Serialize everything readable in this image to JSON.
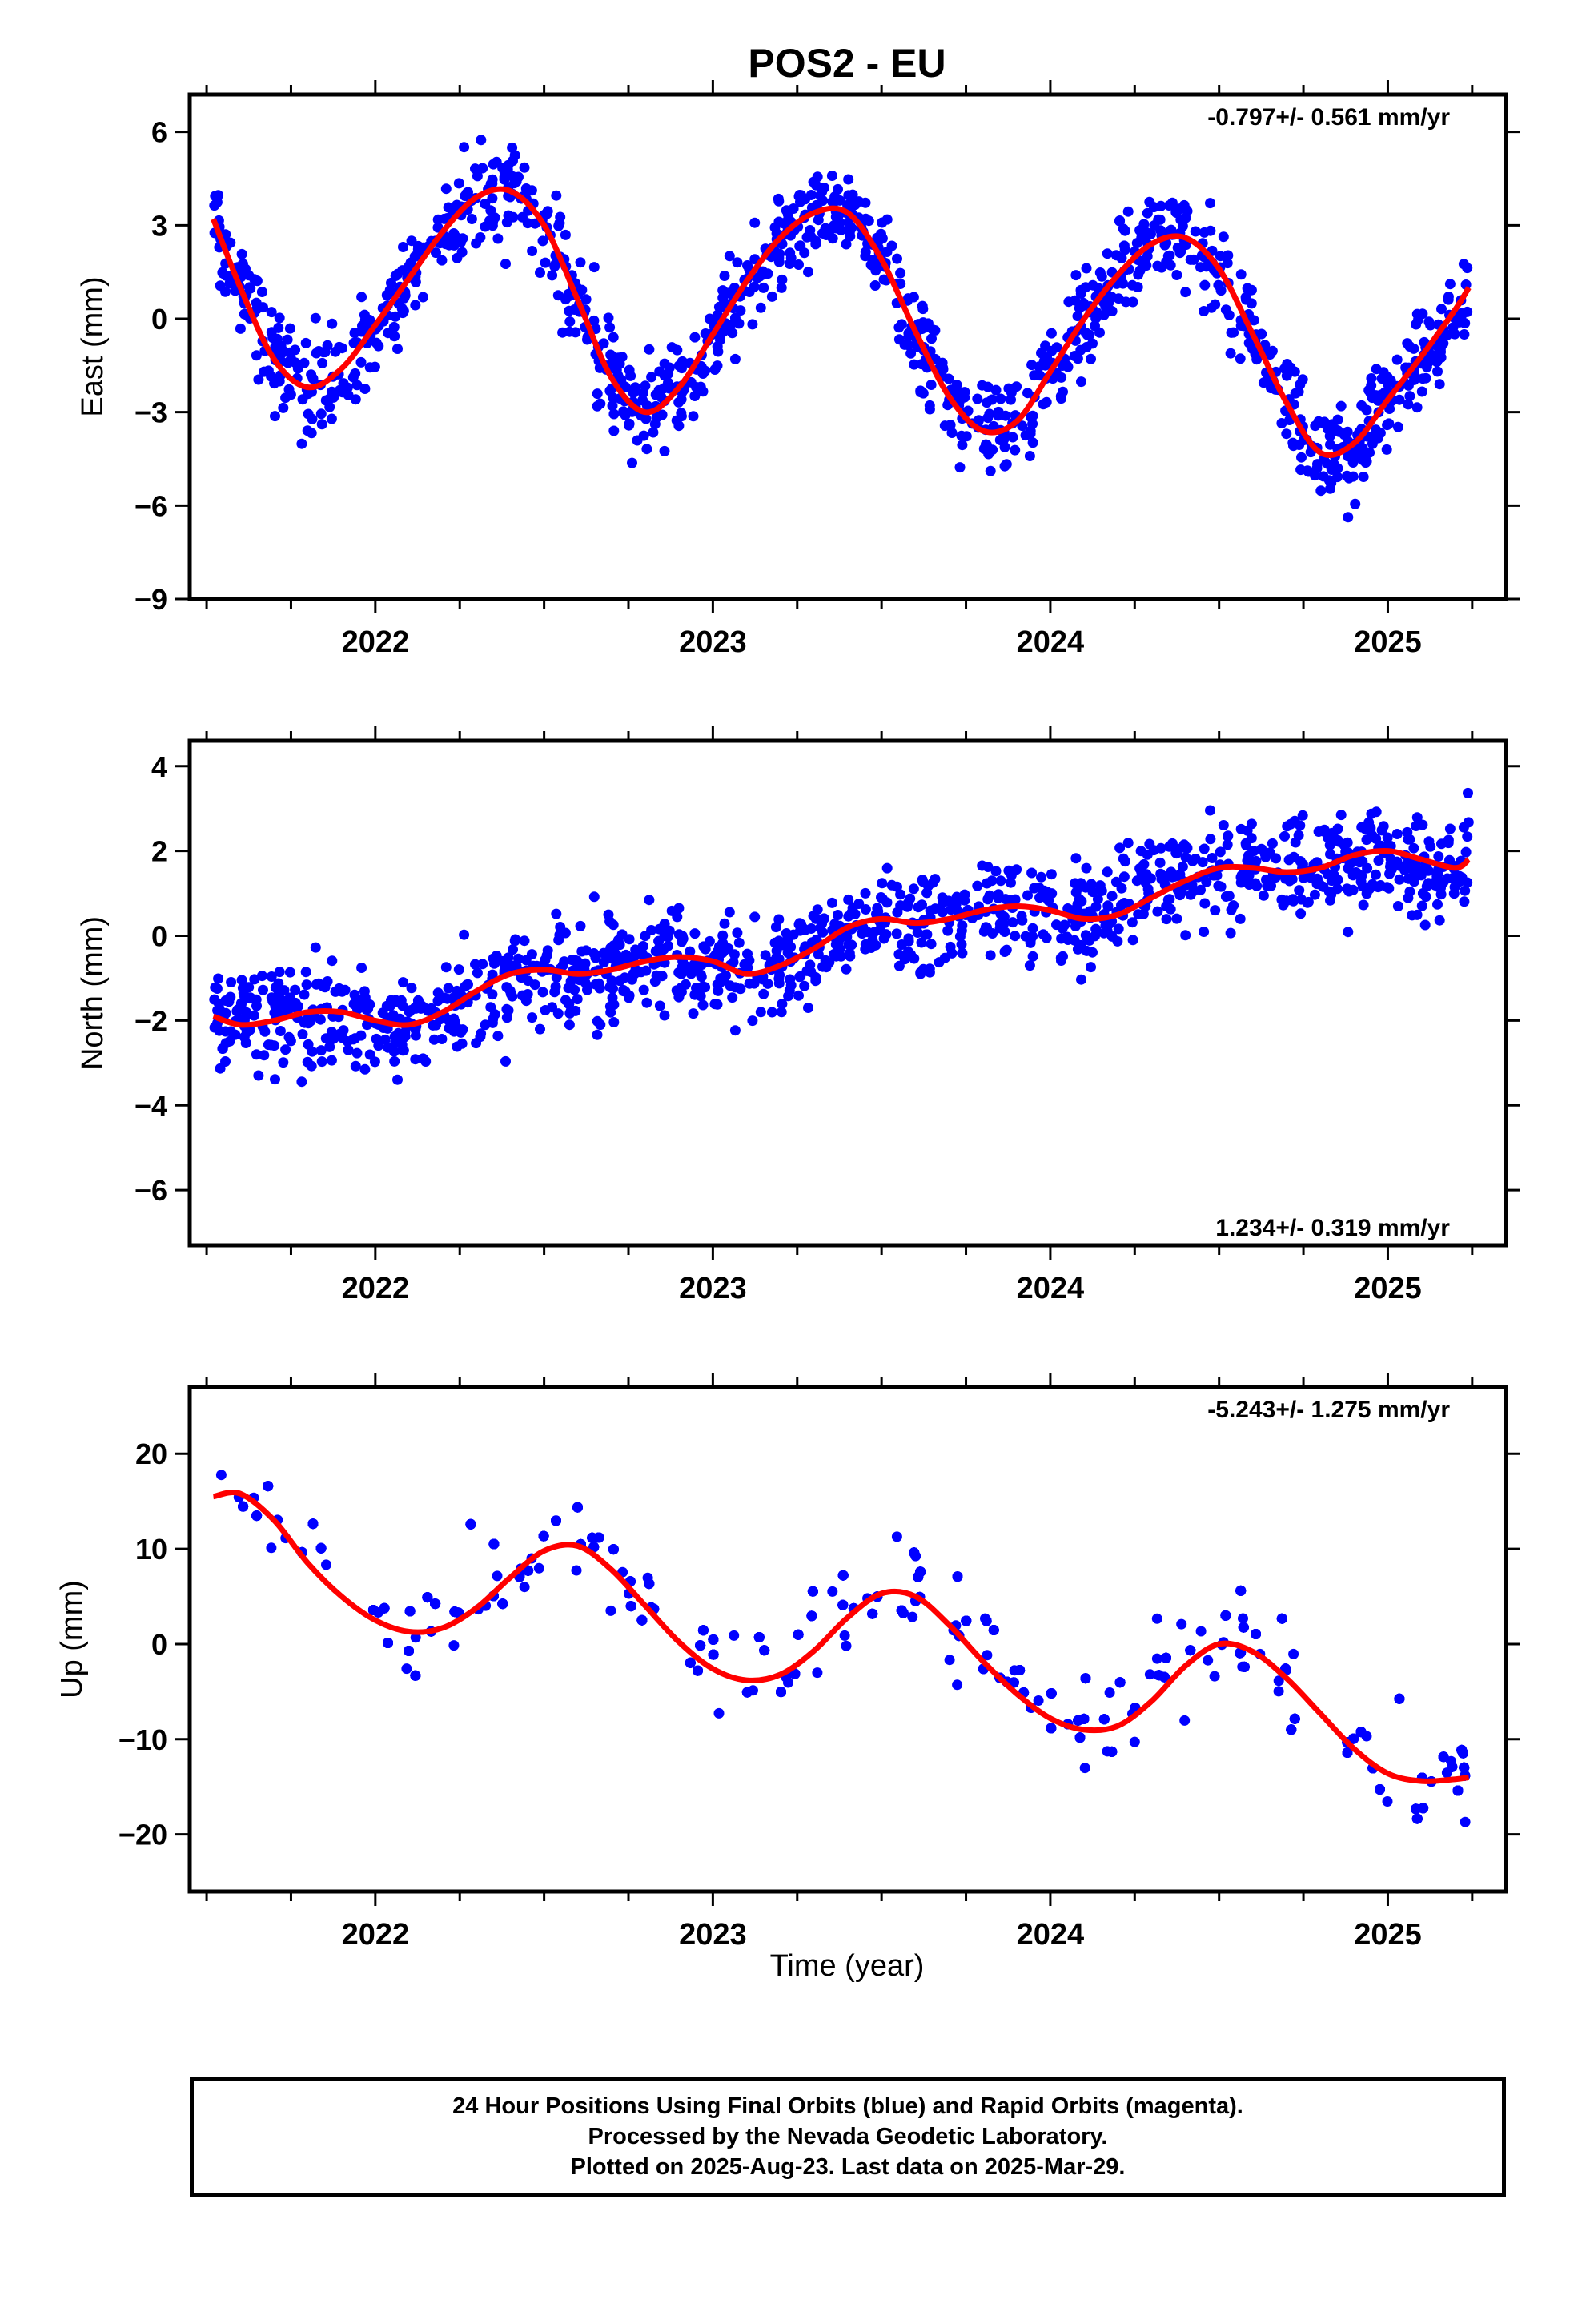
{
  "title": "POS2 - EU",
  "xlabel": "Time (year)",
  "footer": {
    "line1": "24 Hour Positions Using Final Orbits (blue) and Rapid Orbits (magenta).",
    "line2": "Processed by the Nevada Geodetic Laboratory.",
    "line3": "Plotted on 2025-Aug-23. Last data on 2025-Mar-29."
  },
  "colors": {
    "points": "#0000ff",
    "fit": "#ff0000",
    "axes": "#000000"
  },
  "chart_data": [
    {
      "type": "scatter",
      "ylabel": "East (mm)",
      "rate_label": "-0.797+/- 0.561 mm/yr",
      "rate_position": "top-right",
      "xlim": [
        2021.45,
        2025.35
      ],
      "ylim": [
        -9,
        7.2
      ],
      "yticks": [
        -9,
        -6,
        -3,
        0,
        3,
        6
      ],
      "xticks": [
        2022,
        2023,
        2024,
        2025
      ],
      "series": [
        {
          "kind": "points",
          "color": "#0000ff",
          "x": [
            2021.52,
            2021.6,
            2021.7,
            2021.8,
            2021.9,
            2022.0,
            2022.1,
            2022.2,
            2022.3,
            2022.4,
            2022.5,
            2022.6,
            2022.7,
            2022.8,
            2022.9,
            2023.0,
            2023.1,
            2023.2,
            2023.3,
            2023.4,
            2023.5,
            2023.6,
            2023.7,
            2023.8,
            2023.9,
            2024.0,
            2024.1,
            2024.2,
            2024.3,
            2024.4,
            2024.5,
            2024.6,
            2024.7,
            2024.8,
            2024.9,
            2025.0,
            2025.1,
            2025.2,
            2025.24
          ],
          "y": [
            3.2,
            1.0,
            -1.3,
            -2.2,
            -1.6,
            -0.2,
            1.3,
            2.8,
            3.9,
            4.1,
            3.0,
            0.6,
            -1.9,
            -3.0,
            -2.2,
            -0.5,
            1.2,
            2.6,
            3.4,
            3.4,
            1.9,
            -0.4,
            -2.5,
            -3.6,
            -3.3,
            -1.7,
            0.0,
            1.4,
            2.4,
            2.6,
            1.6,
            -0.5,
            -2.7,
            -4.3,
            -4.0,
            -2.6,
            -1.2,
            0.3,
            1.0
          ],
          "scatter_mm": 1.3
        },
        {
          "kind": "fit",
          "name": "",
          "color": "#ff0000",
          "x": [
            2021.52,
            2021.6,
            2021.7,
            2021.8,
            2021.9,
            2022.0,
            2022.1,
            2022.2,
            2022.3,
            2022.4,
            2022.5,
            2022.6,
            2022.7,
            2022.8,
            2022.9,
            2023.0,
            2023.1,
            2023.2,
            2023.3,
            2023.4,
            2023.5,
            2023.6,
            2023.7,
            2023.8,
            2023.9,
            2024.0,
            2024.1,
            2024.2,
            2024.3,
            2024.4,
            2024.5,
            2024.6,
            2024.7,
            2024.8,
            2024.9,
            2025.0,
            2025.1,
            2025.2,
            2025.24
          ],
          "y": [
            3.2,
            1.0,
            -1.3,
            -2.2,
            -1.6,
            -0.2,
            1.3,
            2.8,
            3.9,
            4.1,
            3.0,
            0.6,
            -1.9,
            -3.0,
            -2.2,
            -0.5,
            1.2,
            2.6,
            3.4,
            3.4,
            1.9,
            -0.4,
            -2.5,
            -3.6,
            -3.3,
            -1.7,
            0.0,
            1.4,
            2.4,
            2.6,
            1.6,
            -0.5,
            -2.7,
            -4.3,
            -4.0,
            -2.6,
            -1.2,
            0.3,
            1.0
          ]
        }
      ]
    },
    {
      "type": "scatter",
      "ylabel": "North (mm)",
      "rate_label": "1.234+/- 0.319 mm/yr",
      "rate_position": "bottom-right",
      "xlim": [
        2021.45,
        2025.35
      ],
      "ylim": [
        -7.3,
        4.6
      ],
      "yticks": [
        -6,
        -4,
        -2,
        0,
        2,
        4
      ],
      "xticks": [
        2022,
        2023,
        2024,
        2025
      ],
      "series": [
        {
          "kind": "points",
          "color": "#0000ff",
          "x": [
            2021.52,
            2021.7,
            2021.9,
            2022.1,
            2022.3,
            2022.5,
            2022.7,
            2022.9,
            2023.1,
            2023.3,
            2023.5,
            2023.7,
            2023.9,
            2024.1,
            2024.3,
            2024.5,
            2024.7,
            2024.9,
            2025.1,
            2025.24
          ],
          "y": [
            -1.9,
            -2.0,
            -1.8,
            -2.1,
            -1.4,
            -0.9,
            -0.8,
            -0.5,
            -0.8,
            -0.3,
            0.3,
            0.4,
            0.7,
            0.4,
            1.1,
            1.6,
            1.6,
            1.9,
            1.6,
            1.8
          ],
          "scatter_mm": 1.0
        },
        {
          "kind": "fit",
          "name": "",
          "color": "#ff0000",
          "x": [
            2021.52,
            2021.6,
            2021.7,
            2021.8,
            2021.9,
            2022.0,
            2022.1,
            2022.2,
            2022.3,
            2022.4,
            2022.5,
            2022.6,
            2022.7,
            2022.8,
            2022.9,
            2023.0,
            2023.1,
            2023.2,
            2023.3,
            2023.4,
            2023.5,
            2023.6,
            2023.7,
            2023.8,
            2023.9,
            2024.0,
            2024.1,
            2024.2,
            2024.3,
            2024.4,
            2024.5,
            2024.6,
            2024.7,
            2024.8,
            2024.9,
            2025.0,
            2025.1,
            2025.2,
            2025.24
          ],
          "y": [
            -1.9,
            -2.1,
            -2.0,
            -1.8,
            -1.8,
            -2.0,
            -2.1,
            -1.8,
            -1.3,
            -0.9,
            -0.8,
            -0.9,
            -0.8,
            -0.6,
            -0.5,
            -0.6,
            -0.9,
            -0.7,
            -0.3,
            0.2,
            0.4,
            0.3,
            0.4,
            0.6,
            0.7,
            0.6,
            0.4,
            0.5,
            0.9,
            1.3,
            1.6,
            1.6,
            1.5,
            1.6,
            1.9,
            2.0,
            1.8,
            1.6,
            1.8
          ]
        }
      ]
    },
    {
      "type": "scatter",
      "ylabel": "Up (mm)",
      "rate_label": "-5.243+/- 1.275 mm/yr",
      "rate_position": "top-right",
      "xlim": [
        2021.45,
        2025.35
      ],
      "ylim": [
        -26,
        27
      ],
      "yticks": [
        -20,
        -10,
        0,
        10,
        20
      ],
      "xticks": [
        2022,
        2023,
        2024,
        2025
      ],
      "series": [
        {
          "kind": "points",
          "color": "#0000ff",
          "x": [
            2021.52,
            2021.6,
            2021.7,
            2021.8,
            2021.9,
            2022.0,
            2022.1,
            2022.2,
            2022.3,
            2022.4,
            2022.5,
            2022.6,
            2022.7,
            2022.8,
            2022.9,
            2023.0,
            2023.1,
            2023.2,
            2023.3,
            2023.4,
            2023.5,
            2023.6,
            2023.7,
            2023.8,
            2023.9,
            2024.0,
            2024.1,
            2024.2,
            2024.3,
            2024.4,
            2024.5,
            2024.6,
            2024.7,
            2024.8,
            2024.9,
            2025.0,
            2025.1,
            2025.2,
            2025.24
          ],
          "y": [
            15.5,
            15.8,
            13.0,
            8.5,
            5.0,
            2.5,
            1.3,
            1.7,
            3.8,
            7.0,
            9.8,
            10.3,
            7.8,
            4.0,
            0.2,
            -2.6,
            -3.8,
            -3.2,
            -0.7,
            2.8,
            5.3,
            5.0,
            2.0,
            -1.8,
            -5.2,
            -7.8,
            -9.0,
            -8.6,
            -6.0,
            -2.3,
            0.0,
            -0.8,
            -3.6,
            -7.3,
            -11.0,
            -13.6,
            -14.4,
            -14.2,
            -14.0
          ],
          "scatter_mm": 4.5
        },
        {
          "kind": "fit",
          "name": "",
          "color": "#ff0000",
          "x": [
            2021.52,
            2021.6,
            2021.7,
            2021.8,
            2021.9,
            2022.0,
            2022.1,
            2022.2,
            2022.3,
            2022.4,
            2022.5,
            2022.6,
            2022.7,
            2022.8,
            2022.9,
            2023.0,
            2023.1,
            2023.2,
            2023.3,
            2023.4,
            2023.5,
            2023.6,
            2023.7,
            2023.8,
            2023.9,
            2024.0,
            2024.1,
            2024.2,
            2024.3,
            2024.4,
            2024.5,
            2024.6,
            2024.7,
            2024.8,
            2024.9,
            2025.0,
            2025.1,
            2025.2,
            2025.24
          ],
          "y": [
            15.5,
            15.8,
            13.0,
            8.5,
            5.0,
            2.5,
            1.3,
            1.7,
            3.8,
            7.0,
            9.8,
            10.3,
            7.8,
            4.0,
            0.2,
            -2.6,
            -3.8,
            -3.2,
            -0.7,
            2.8,
            5.3,
            5.0,
            2.0,
            -1.8,
            -5.2,
            -7.8,
            -9.0,
            -8.6,
            -6.0,
            -2.3,
            0.0,
            -0.8,
            -3.6,
            -7.3,
            -11.0,
            -13.6,
            -14.4,
            -14.2,
            -14.0
          ]
        }
      ]
    }
  ]
}
